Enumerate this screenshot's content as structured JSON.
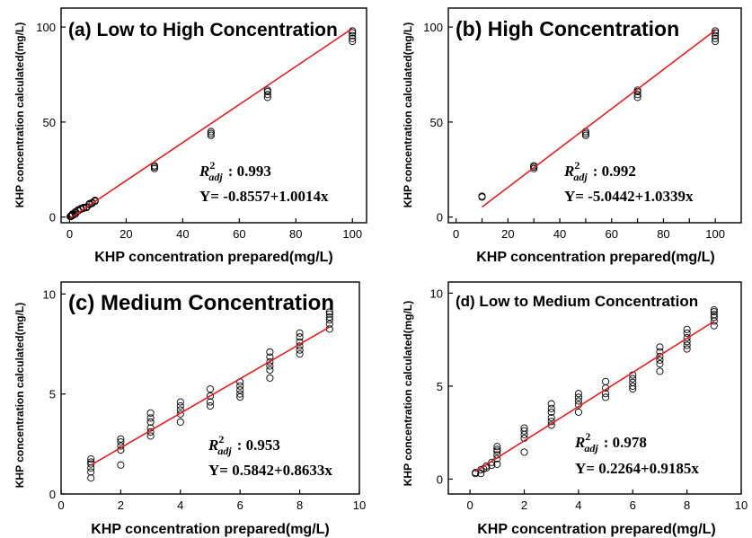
{
  "x_label": "KHP concentration prepared(mg/L)",
  "y_label": "KHP concentration calculated(mg/L)",
  "chart_data": [
    {
      "type": "scatter",
      "title": "(a) Low to High Concentration",
      "xlabel": "KHP concentration prepared(mg/L)",
      "ylabel": "KHP concentration calculated(mg/L)",
      "xlim": [
        -3,
        105
      ],
      "ylim": [
        -3,
        110
      ],
      "xticks": [
        0,
        20,
        40,
        60,
        80,
        100
      ],
      "yticks": [
        0,
        50,
        100
      ],
      "r2_label": "R",
      "r2_sup": "2",
      "r2_sub": "adj",
      "r2_value": ": 0.993",
      "equation": "Y= -0.8557+1.0014x",
      "fit": {
        "intercept": -0.8557,
        "slope": 1.0014,
        "x_range": [
          0,
          100
        ]
      },
      "series": [
        {
          "points": [
            [
              0.2,
              0.3
            ],
            [
              0.4,
              0.5
            ],
            [
              0.5,
              0.3
            ],
            [
              0.6,
              0.7
            ],
            [
              0.8,
              0.9
            ],
            [
              1,
              1.2
            ],
            [
              1,
              0.8
            ],
            [
              1,
              1.6
            ],
            [
              2,
              2.2
            ],
            [
              2,
              2.7
            ],
            [
              2,
              1.5
            ],
            [
              3,
              3.2
            ],
            [
              3,
              3.8
            ],
            [
              4,
              4.1
            ],
            [
              4,
              4.5
            ],
            [
              5,
              4.6
            ],
            [
              5,
              5.1
            ],
            [
              6,
              5.3
            ],
            [
              6,
              5.0
            ],
            [
              7,
              6.5
            ],
            [
              7,
              7.0
            ],
            [
              8,
              7.6
            ],
            [
              8,
              7.2
            ],
            [
              9,
              8.8
            ],
            [
              9,
              8.3
            ],
            [
              30,
              25.5
            ],
            [
              30,
              26.3
            ],
            [
              30,
              27.0
            ],
            [
              50,
              43.0
            ],
            [
              50,
              44.0
            ],
            [
              50,
              45.0
            ],
            [
              70,
              63.0
            ],
            [
              70,
              64.5
            ],
            [
              70,
              66.0
            ],
            [
              70,
              66.8
            ],
            [
              100,
              92.5
            ],
            [
              100,
              94.0
            ],
            [
              100,
              95.5
            ],
            [
              100,
              97.0
            ],
            [
              100,
              98.0
            ]
          ]
        }
      ]
    },
    {
      "type": "scatter",
      "title": "(b) High Concentration",
      "xlabel": "KHP concentration prepared(mg/L)",
      "ylabel": "KHP concentration calculated(mg/L)",
      "xlim": [
        -3,
        110
      ],
      "ylim": [
        -3,
        110
      ],
      "xticks": [
        0,
        10,
        20,
        30,
        40,
        50,
        60,
        70,
        80,
        90,
        100
      ],
      "xtick_labels": [
        "0",
        "",
        "20",
        "",
        "40",
        "",
        "60",
        "",
        "80",
        "",
        "100"
      ],
      "yticks": [
        0,
        50,
        100
      ],
      "r2_label": "R",
      "r2_sup": "2",
      "r2_sub": "adj",
      "r2_value": ": 0.992",
      "equation": "Y= -5.0442+1.0339x",
      "fit": {
        "intercept": -5.0442,
        "slope": 1.0339,
        "x_range": [
          10,
          100
        ]
      },
      "series": [
        {
          "points": [
            [
              10,
              10.5
            ],
            [
              10,
              11.0
            ],
            [
              30,
              25.5
            ],
            [
              30,
              26.3
            ],
            [
              30,
              27.0
            ],
            [
              50,
              43.0
            ],
            [
              50,
              44.0
            ],
            [
              50,
              45.0
            ],
            [
              70,
              63.0
            ],
            [
              70,
              64.5
            ],
            [
              70,
              66.0
            ],
            [
              70,
              66.8
            ],
            [
              100,
              92.5
            ],
            [
              100,
              94.0
            ],
            [
              100,
              95.5
            ],
            [
              100,
              97.0
            ],
            [
              100,
              98.0
            ]
          ]
        }
      ]
    },
    {
      "type": "scatter",
      "title": "(c) Medium Concentration",
      "xlabel": "KHP concentration prepared(mg/L)",
      "ylabel": "KHP concentration calculated(mg/L)",
      "xlim": [
        0,
        10
      ],
      "ylim": [
        0,
        10.6
      ],
      "xticks": [
        0,
        2,
        4,
        6,
        8,
        10
      ],
      "yticks": [
        0,
        5,
        10
      ],
      "r2_label": "R",
      "r2_sup": "2",
      "r2_sub": "adj",
      "r2_value": ": 0.953",
      "equation": "Y= 0.5842+0.8633x",
      "fit": {
        "intercept": 0.5842,
        "slope": 0.8633,
        "x_range": [
          1,
          9
        ]
      },
      "series": [
        {
          "points": [
            [
              1,
              0.8
            ],
            [
              1,
              1.1
            ],
            [
              1,
              1.3
            ],
            [
              1,
              1.5
            ],
            [
              1,
              1.6
            ],
            [
              1,
              1.75
            ],
            [
              2,
              1.45
            ],
            [
              2,
              2.2
            ],
            [
              2,
              2.4
            ],
            [
              2,
              2.6
            ],
            [
              2,
              2.75
            ],
            [
              3,
              2.9
            ],
            [
              3,
              3.1
            ],
            [
              3,
              3.3
            ],
            [
              3,
              3.6
            ],
            [
              3,
              3.8
            ],
            [
              3,
              4.05
            ],
            [
              4,
              3.6
            ],
            [
              4,
              4.0
            ],
            [
              4,
              4.2
            ],
            [
              4,
              4.4
            ],
            [
              4,
              4.6
            ],
            [
              5,
              4.4
            ],
            [
              5,
              4.6
            ],
            [
              5,
              4.9
            ],
            [
              5,
              5.25
            ],
            [
              6,
              4.85
            ],
            [
              6,
              5.0
            ],
            [
              6,
              5.2
            ],
            [
              6,
              5.4
            ],
            [
              6,
              5.6
            ],
            [
              7,
              5.8
            ],
            [
              7,
              6.2
            ],
            [
              7,
              6.4
            ],
            [
              7,
              6.6
            ],
            [
              7,
              6.85
            ],
            [
              7,
              7.1
            ],
            [
              8,
              7.0
            ],
            [
              8,
              7.2
            ],
            [
              8,
              7.4
            ],
            [
              8,
              7.6
            ],
            [
              8,
              7.85
            ],
            [
              8,
              8.05
            ],
            [
              9,
              8.25
            ],
            [
              9,
              8.5
            ],
            [
              9,
              8.7
            ],
            [
              9,
              8.85
            ],
            [
              9,
              9.0
            ],
            [
              9,
              9.1
            ]
          ]
        }
      ]
    },
    {
      "type": "scatter",
      "title": "(d) Low to Medium Concentration",
      "xlabel": "KHP concentration prepared(mg/L)",
      "ylabel": "KHP concentration calculated(mg/L)",
      "xlim": [
        -0.8,
        10
      ],
      "ylim": [
        -0.8,
        10.6
      ],
      "xticks": [
        0,
        2,
        4,
        6,
        8,
        10
      ],
      "yticks": [
        0,
        5,
        10
      ],
      "r2_label": "R",
      "r2_sup": "2",
      "r2_sub": "adj",
      "r2_value": ": 0.978",
      "equation": "Y= 0.2264+0.9185x",
      "fit": {
        "intercept": 0.2264,
        "slope": 0.9185,
        "x_range": [
          0.2,
          9
        ]
      },
      "series": [
        {
          "points": [
            [
              0.2,
              0.3
            ],
            [
              0.2,
              0.35
            ],
            [
              0.4,
              0.3
            ],
            [
              0.4,
              0.5
            ],
            [
              0.5,
              0.55
            ],
            [
              0.6,
              0.7
            ],
            [
              0.6,
              0.6
            ],
            [
              0.8,
              0.75
            ],
            [
              0.8,
              0.9
            ],
            [
              1,
              0.8
            ],
            [
              1,
              1.1
            ],
            [
              1,
              1.3
            ],
            [
              1,
              1.5
            ],
            [
              1,
              1.6
            ],
            [
              1,
              1.75
            ],
            [
              2,
              1.45
            ],
            [
              2,
              2.2
            ],
            [
              2,
              2.4
            ],
            [
              2,
              2.6
            ],
            [
              2,
              2.75
            ],
            [
              3,
              2.9
            ],
            [
              3,
              3.1
            ],
            [
              3,
              3.3
            ],
            [
              3,
              3.6
            ],
            [
              3,
              3.8
            ],
            [
              3,
              4.05
            ],
            [
              4,
              3.6
            ],
            [
              4,
              4.0
            ],
            [
              4,
              4.2
            ],
            [
              4,
              4.4
            ],
            [
              4,
              4.6
            ],
            [
              5,
              4.4
            ],
            [
              5,
              4.6
            ],
            [
              5,
              4.9
            ],
            [
              5,
              5.25
            ],
            [
              6,
              4.85
            ],
            [
              6,
              5.0
            ],
            [
              6,
              5.2
            ],
            [
              6,
              5.4
            ],
            [
              6,
              5.6
            ],
            [
              7,
              5.8
            ],
            [
              7,
              6.2
            ],
            [
              7,
              6.4
            ],
            [
              7,
              6.6
            ],
            [
              7,
              6.85
            ],
            [
              7,
              7.1
            ],
            [
              8,
              7.0
            ],
            [
              8,
              7.2
            ],
            [
              8,
              7.4
            ],
            [
              8,
              7.6
            ],
            [
              8,
              7.85
            ],
            [
              8,
              8.05
            ],
            [
              9,
              8.25
            ],
            [
              9,
              8.5
            ],
            [
              9,
              8.7
            ],
            [
              9,
              8.85
            ],
            [
              9,
              9.0
            ],
            [
              9,
              9.1
            ]
          ]
        }
      ]
    }
  ]
}
